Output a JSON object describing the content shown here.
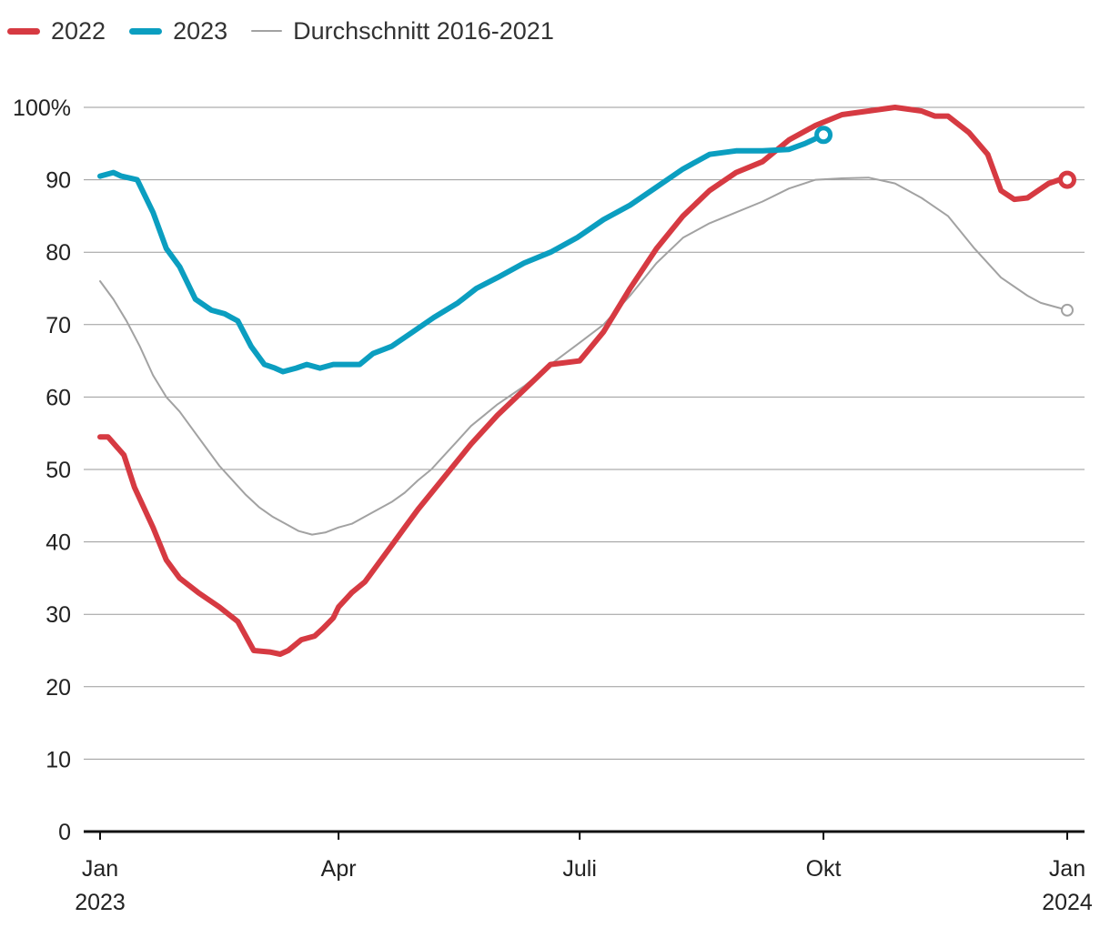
{
  "chart_data": {
    "type": "line",
    "title": "",
    "xlabel": "",
    "ylabel": "",
    "ylim": [
      0,
      100
    ],
    "xlim": [
      0,
      365
    ],
    "grid": true,
    "legend": "top-left",
    "y_ticks": [
      {
        "value": 0,
        "label": "0"
      },
      {
        "value": 10,
        "label": "10"
      },
      {
        "value": 20,
        "label": "20"
      },
      {
        "value": 30,
        "label": "30"
      },
      {
        "value": 40,
        "label": "40"
      },
      {
        "value": 50,
        "label": "50"
      },
      {
        "value": 60,
        "label": "60"
      },
      {
        "value": 70,
        "label": "70"
      },
      {
        "value": 80,
        "label": "80"
      },
      {
        "value": 90,
        "label": "90"
      },
      {
        "value": 100,
        "label": "100%"
      }
    ],
    "x_ticks": [
      {
        "day": 0,
        "label": "Jan",
        "sublabel": "2023"
      },
      {
        "day": 90,
        "label": "Apr",
        "sublabel": ""
      },
      {
        "day": 181,
        "label": "Juli",
        "sublabel": ""
      },
      {
        "day": 273,
        "label": "Okt",
        "sublabel": ""
      },
      {
        "day": 365,
        "label": "Jan",
        "sublabel": "2024"
      }
    ],
    "series": [
      {
        "name": "2022",
        "color": "#d63a42",
        "style": "thick",
        "end_marker": true,
        "x": [
          0,
          3,
          9,
          13,
          20,
          25,
          30,
          37,
          45,
          52,
          58,
          64,
          68,
          71,
          76,
          81,
          84,
          88,
          90,
          95,
          100,
          105,
          110,
          115,
          120,
          130,
          140,
          150,
          160,
          170,
          181,
          190,
          200,
          210,
          220,
          230,
          240,
          250,
          260,
          270,
          280,
          290,
          300,
          310,
          315,
          320,
          328,
          335,
          340,
          345,
          350,
          354,
          358,
          362,
          365
        ],
        "values": [
          54.5,
          54.5,
          52,
          47.5,
          42,
          37.5,
          35,
          33,
          31,
          29,
          25,
          24.8,
          24.5,
          25,
          26.5,
          27,
          28,
          29.5,
          31,
          33,
          34.5,
          37,
          39.5,
          42,
          44.5,
          49,
          53.5,
          57.5,
          61,
          64.5,
          65,
          69,
          75,
          80.5,
          85,
          88.5,
          91,
          92.5,
          95.5,
          97.5,
          99,
          99.5,
          100,
          99.5,
          98.8,
          98.8,
          96.5,
          93.5,
          88.5,
          87.3,
          87.5,
          88.5,
          89.5,
          90,
          90
        ]
      },
      {
        "name": "2023",
        "color": "#0b9ec0",
        "style": "thick",
        "end_marker": true,
        "x": [
          0,
          5,
          8,
          14,
          20,
          25,
          30,
          36,
          42,
          47,
          52,
          57,
          62,
          66,
          69,
          74,
          78,
          83,
          88,
          93,
          98,
          103,
          110,
          118,
          126,
          135,
          142,
          150,
          160,
          170,
          180,
          190,
          200,
          210,
          220,
          230,
          240,
          250,
          260,
          266,
          269,
          273
        ],
        "values": [
          90.5,
          91,
          90.5,
          90,
          85.5,
          80.5,
          78,
          73.5,
          72,
          71.5,
          70.5,
          67,
          64.5,
          64,
          63.5,
          64,
          64.5,
          64,
          64.5,
          64.5,
          64.5,
          66,
          67,
          69,
          71,
          73,
          75,
          76.5,
          78.5,
          80,
          82,
          84.5,
          86.5,
          89,
          91.5,
          93.5,
          94,
          94,
          94.2,
          95,
          95.5,
          96.2
        ]
      },
      {
        "name": "Durchschnitt 2016-2021",
        "color": "#a2a2a2",
        "style": "thin",
        "end_marker": true,
        "x": [
          0,
          5,
          10,
          15,
          20,
          25,
          30,
          35,
          40,
          45,
          50,
          55,
          60,
          65,
          70,
          75,
          80,
          85,
          90,
          95,
          100,
          105,
          110,
          115,
          120,
          125,
          130,
          135,
          140,
          145,
          150,
          160,
          170,
          181,
          190,
          200,
          210,
          220,
          230,
          240,
          250,
          260,
          270,
          280,
          290,
          300,
          310,
          320,
          330,
          340,
          350,
          355,
          360,
          365
        ],
        "values": [
          76,
          73.5,
          70.5,
          67,
          63,
          60,
          58,
          55.5,
          53,
          50.5,
          48.5,
          46.5,
          44.8,
          43.5,
          42.5,
          41.5,
          41,
          41.3,
          42,
          42.5,
          43.5,
          44.5,
          45.5,
          46.8,
          48.5,
          50,
          52,
          54,
          56,
          57.5,
          59,
          61.5,
          64.5,
          67.5,
          70,
          74,
          78.5,
          82,
          84,
          85.5,
          87,
          88.8,
          90,
          90.2,
          90.3,
          89.5,
          87.5,
          85,
          80.5,
          76.5,
          74,
          73,
          72.5,
          72
        ]
      }
    ]
  }
}
